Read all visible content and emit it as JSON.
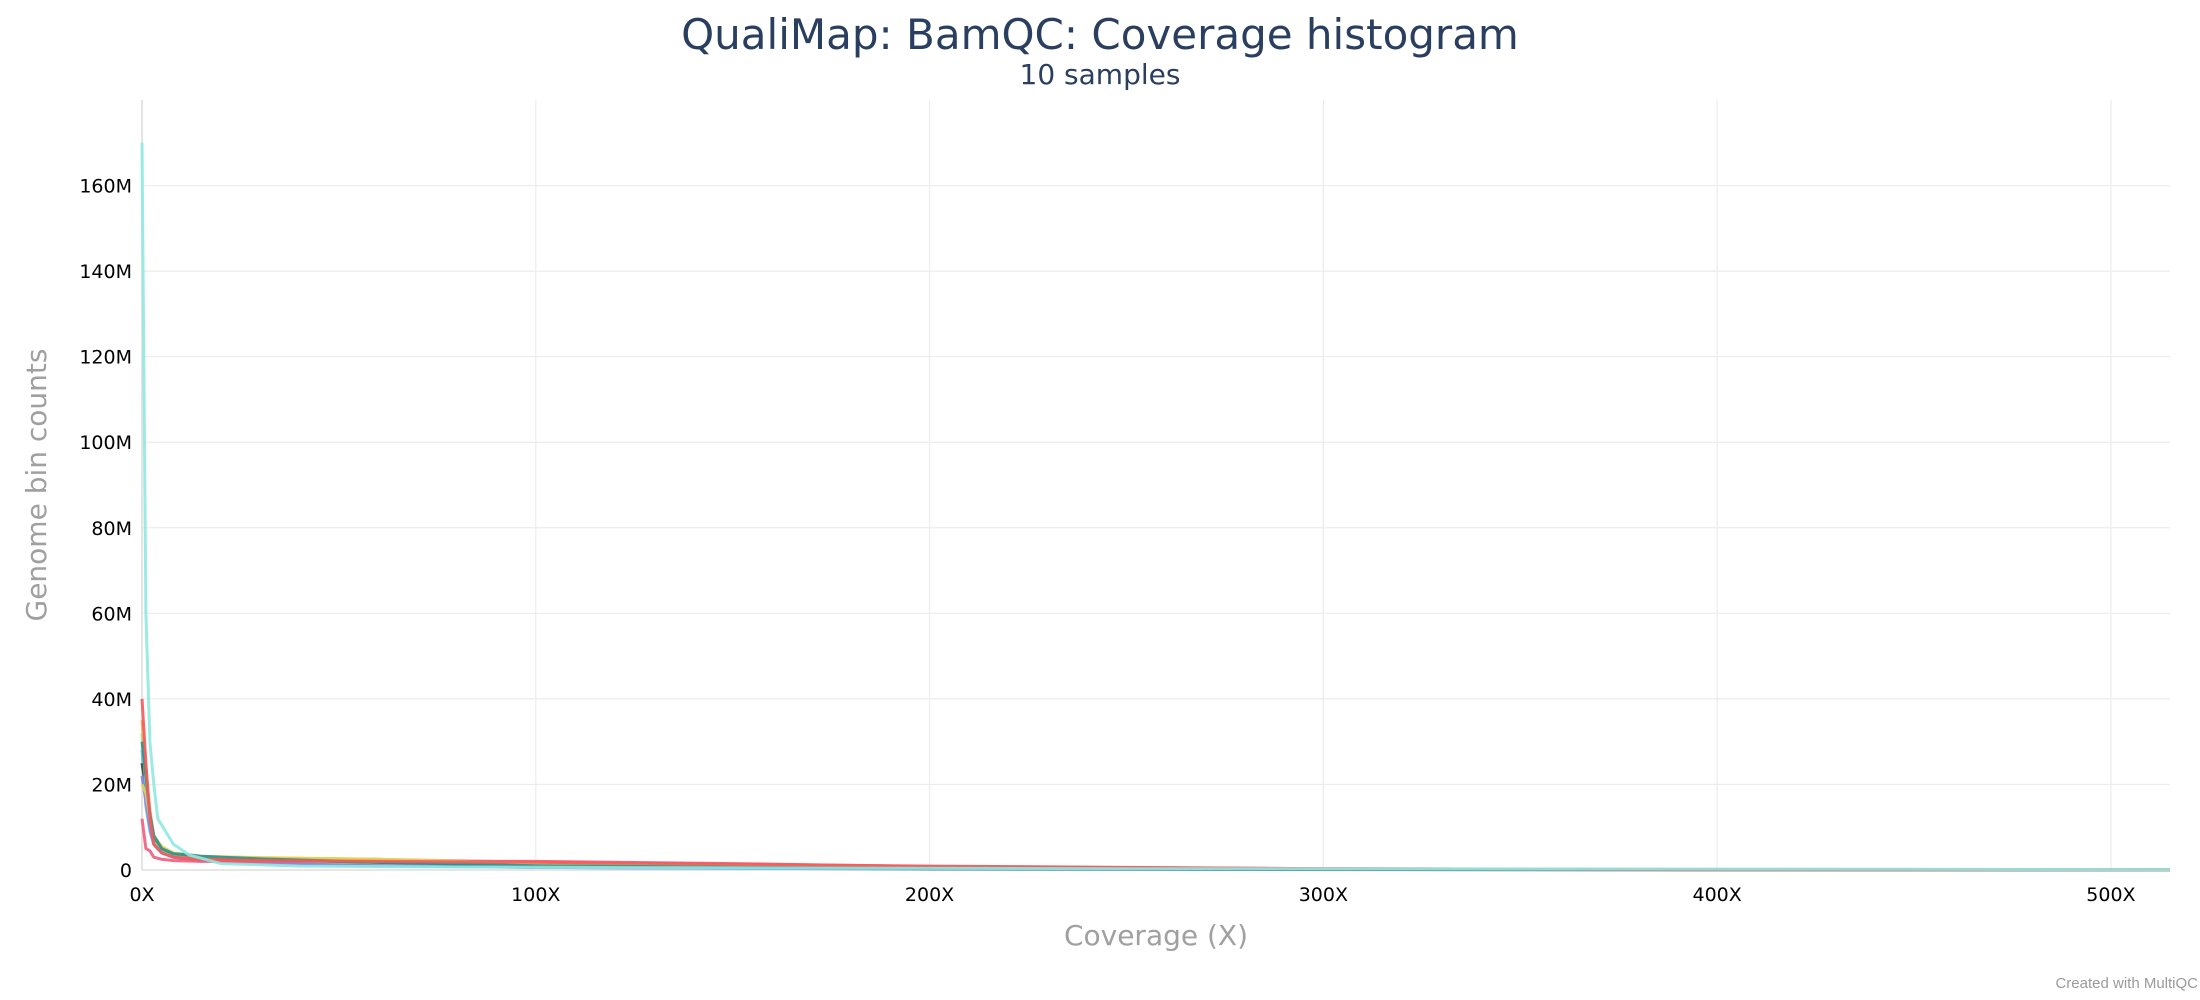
{
  "chart_data": {
    "type": "line",
    "title": "QualiMap: BamQC: Coverage histogram",
    "subtitle": "10 samples",
    "xlabel": "Coverage (X)",
    "ylabel": "Genome bin counts",
    "xlim": [
      0,
      515
    ],
    "ylim": [
      0,
      180000000
    ],
    "x_ticks": [
      {
        "value": 0,
        "label": "0X"
      },
      {
        "value": 100,
        "label": "100X"
      },
      {
        "value": 200,
        "label": "200X"
      },
      {
        "value": 300,
        "label": "300X"
      },
      {
        "value": 400,
        "label": "400X"
      },
      {
        "value": 500,
        "label": "500X"
      }
    ],
    "y_ticks": [
      {
        "value": 0,
        "label": "0"
      },
      {
        "value": 20000000,
        "label": "20M"
      },
      {
        "value": 40000000,
        "label": "40M"
      },
      {
        "value": 60000000,
        "label": "60M"
      },
      {
        "value": 80000000,
        "label": "80M"
      },
      {
        "value": 100000000,
        "label": "100M"
      },
      {
        "value": 120000000,
        "label": "120M"
      },
      {
        "value": 140000000,
        "label": "140M"
      },
      {
        "value": 160000000,
        "label": "160M"
      }
    ],
    "grid": true,
    "legend": "none",
    "series": [
      {
        "color": "#7cb5ec",
        "points": [
          [
            0,
            28000000
          ],
          [
            1,
            15000000
          ],
          [
            2,
            9000000
          ],
          [
            3,
            6000000
          ],
          [
            5,
            4000000
          ],
          [
            8,
            3000000
          ],
          [
            15,
            2200000
          ],
          [
            30,
            1600000
          ],
          [
            60,
            1000000
          ],
          [
            100,
            600000
          ],
          [
            200,
            250000
          ],
          [
            300,
            120000
          ],
          [
            400,
            60000
          ],
          [
            515,
            20000
          ]
        ]
      },
      {
        "color": "#434348",
        "points": [
          [
            0,
            25000000
          ],
          [
            1,
            19000000
          ],
          [
            2,
            12000000
          ],
          [
            3,
            7000000
          ],
          [
            5,
            4500000
          ],
          [
            8,
            3300000
          ],
          [
            15,
            2500000
          ],
          [
            30,
            1900000
          ],
          [
            60,
            1300000
          ],
          [
            100,
            800000
          ],
          [
            200,
            300000
          ],
          [
            300,
            130000
          ],
          [
            400,
            60000
          ],
          [
            515,
            20000
          ]
        ]
      },
      {
        "color": "#90ed7d",
        "points": [
          [
            0,
            32000000
          ],
          [
            1,
            20000000
          ],
          [
            2,
            11000000
          ],
          [
            3,
            6500000
          ],
          [
            5,
            4200000
          ],
          [
            8,
            3100000
          ],
          [
            15,
            2300000
          ],
          [
            30,
            1700000
          ],
          [
            60,
            1100000
          ],
          [
            100,
            700000
          ],
          [
            200,
            280000
          ],
          [
            300,
            120000
          ],
          [
            400,
            50000
          ],
          [
            515,
            15000
          ]
        ]
      },
      {
        "color": "#f7a35c",
        "points": [
          [
            0,
            35000000
          ],
          [
            1,
            24000000
          ],
          [
            2,
            14000000
          ],
          [
            3,
            8000000
          ],
          [
            5,
            5000000
          ],
          [
            8,
            3800000
          ],
          [
            15,
            3000000
          ],
          [
            30,
            2800000
          ],
          [
            60,
            2500000
          ],
          [
            100,
            1800000
          ],
          [
            200,
            700000
          ],
          [
            300,
            250000
          ],
          [
            400,
            90000
          ],
          [
            515,
            25000
          ]
        ]
      },
      {
        "color": "#8085e9",
        "points": [
          [
            0,
            22000000
          ],
          [
            1,
            16000000
          ],
          [
            2,
            10000000
          ],
          [
            3,
            6000000
          ],
          [
            5,
            4000000
          ],
          [
            8,
            3000000
          ],
          [
            15,
            2200000
          ],
          [
            30,
            1600000
          ],
          [
            60,
            1000000
          ],
          [
            100,
            600000
          ],
          [
            200,
            220000
          ],
          [
            300,
            90000
          ],
          [
            400,
            40000
          ],
          [
            515,
            10000
          ]
        ]
      },
      {
        "color": "#f15c80",
        "points": [
          [
            0,
            12000000
          ],
          [
            1,
            5000000
          ],
          [
            2,
            4500000
          ],
          [
            3,
            3000000
          ],
          [
            5,
            2500000
          ],
          [
            8,
            2200000
          ],
          [
            15,
            2000000
          ],
          [
            30,
            2000000
          ],
          [
            60,
            2100000
          ],
          [
            100,
            2000000
          ],
          [
            150,
            1500000
          ],
          [
            200,
            800000
          ],
          [
            300,
            300000
          ],
          [
            400,
            100000
          ],
          [
            515,
            20000
          ]
        ]
      },
      {
        "color": "#e4d354",
        "points": [
          [
            0,
            20000000
          ],
          [
            1,
            18000000
          ],
          [
            2,
            12000000
          ],
          [
            3,
            8000000
          ],
          [
            5,
            5500000
          ],
          [
            8,
            4000000
          ],
          [
            15,
            3200000
          ],
          [
            30,
            2900000
          ],
          [
            60,
            2500000
          ],
          [
            100,
            1500000
          ],
          [
            200,
            500000
          ],
          [
            300,
            200000
          ],
          [
            400,
            80000
          ],
          [
            515,
            20000
          ]
        ]
      },
      {
        "color": "#2b908f",
        "points": [
          [
            0,
            30000000
          ],
          [
            1,
            22000000
          ],
          [
            2,
            13000000
          ],
          [
            3,
            8000000
          ],
          [
            5,
            5000000
          ],
          [
            8,
            3800000
          ],
          [
            12,
            3500000
          ],
          [
            15,
            3200000
          ],
          [
            30,
            2600000
          ],
          [
            60,
            1800000
          ],
          [
            100,
            1000000
          ],
          [
            200,
            350000
          ],
          [
            300,
            140000
          ],
          [
            400,
            60000
          ],
          [
            515,
            15000
          ]
        ]
      },
      {
        "color": "#f45b5b",
        "points": [
          [
            0,
            40000000
          ],
          [
            1,
            25000000
          ],
          [
            2,
            12000000
          ],
          [
            3,
            6000000
          ],
          [
            5,
            4000000
          ],
          [
            8,
            3000000
          ],
          [
            15,
            2500000
          ],
          [
            30,
            2200000
          ],
          [
            60,
            2000000
          ],
          [
            100,
            1800000
          ],
          [
            200,
            900000
          ],
          [
            300,
            300000
          ],
          [
            400,
            100000
          ],
          [
            515,
            20000
          ]
        ]
      },
      {
        "color": "#91e8e1",
        "points": [
          [
            0,
            170000000
          ],
          [
            1,
            60000000
          ],
          [
            2,
            30000000
          ],
          [
            3,
            20000000
          ],
          [
            4,
            12000000
          ],
          [
            6,
            9000000
          ],
          [
            8,
            6000000
          ],
          [
            12,
            3500000
          ],
          [
            20,
            1500000
          ],
          [
            40,
            900000
          ],
          [
            80,
            700000
          ],
          [
            150,
            500000
          ],
          [
            250,
            300000
          ],
          [
            400,
            200000
          ],
          [
            515,
            100000
          ]
        ]
      }
    ]
  },
  "footer": {
    "credit": "Created with MultiQC"
  }
}
